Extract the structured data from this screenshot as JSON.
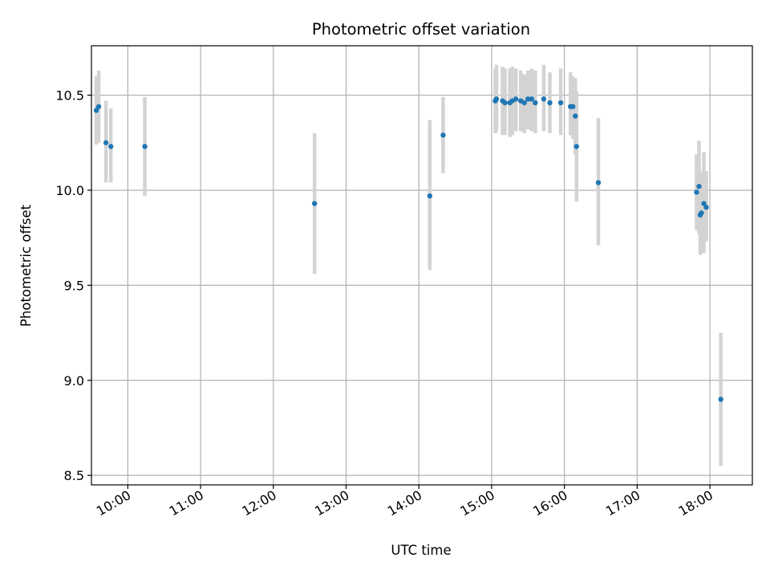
{
  "chart_data": {
    "type": "scatter",
    "title": "Photometric offset variation",
    "xlabel": "UTC time",
    "ylabel": "Photometric offset",
    "x_tick_labels": [
      "10:00",
      "11:00",
      "12:00",
      "13:00",
      "14:00",
      "15:00",
      "16:00",
      "17:00",
      "18:00"
    ],
    "y_ticks": [
      8.5,
      9.0,
      9.5,
      10.0,
      10.5
    ],
    "y_tick_labels": [
      "8.5",
      "9.0",
      "9.5",
      "10.0",
      "10.5"
    ],
    "xlim": [
      "09:30",
      "18:35"
    ],
    "ylim": [
      8.45,
      10.76
    ],
    "grid": true,
    "colors": {
      "point": "#1f77b4",
      "error_bar": "#d3d3d3",
      "grid": "#b0b0b0"
    },
    "points": [
      {
        "x": "09:34",
        "y": 10.42,
        "y_low": 10.24,
        "y_high": 10.6
      },
      {
        "x": "09:36",
        "y": 10.44,
        "y_low": 10.25,
        "y_high": 10.63
      },
      {
        "x": "09:42",
        "y": 10.25,
        "y_low": 10.04,
        "y_high": 10.47
      },
      {
        "x": "09:46",
        "y": 10.23,
        "y_low": 10.04,
        "y_high": 10.43
      },
      {
        "x": "10:14",
        "y": 10.23,
        "y_low": 9.97,
        "y_high": 10.49
      },
      {
        "x": "12:34",
        "y": 9.93,
        "y_low": 9.56,
        "y_high": 10.3
      },
      {
        "x": "14:09",
        "y": 9.97,
        "y_low": 9.58,
        "y_high": 10.37
      },
      {
        "x": "14:20",
        "y": 10.29,
        "y_low": 10.09,
        "y_high": 10.49
      },
      {
        "x": "15:03",
        "y": 10.47,
        "y_low": 10.3,
        "y_high": 10.64
      },
      {
        "x": "15:04",
        "y": 10.48,
        "y_low": 10.31,
        "y_high": 10.66
      },
      {
        "x": "15:09",
        "y": 10.47,
        "y_low": 10.29,
        "y_high": 10.65
      },
      {
        "x": "15:11",
        "y": 10.46,
        "y_low": 10.29,
        "y_high": 10.64
      },
      {
        "x": "15:15",
        "y": 10.46,
        "y_low": 10.28,
        "y_high": 10.64
      },
      {
        "x": "15:17",
        "y": 10.47,
        "y_low": 10.29,
        "y_high": 10.65
      },
      {
        "x": "15:20",
        "y": 10.48,
        "y_low": 10.31,
        "y_high": 10.64
      },
      {
        "x": "15:24",
        "y": 10.47,
        "y_low": 10.31,
        "y_high": 10.63
      },
      {
        "x": "15:27",
        "y": 10.46,
        "y_low": 10.3,
        "y_high": 10.61
      },
      {
        "x": "15:30",
        "y": 10.48,
        "y_low": 10.32,
        "y_high": 10.63
      },
      {
        "x": "15:33",
        "y": 10.48,
        "y_low": 10.31,
        "y_high": 10.64
      },
      {
        "x": "15:36",
        "y": 10.46,
        "y_low": 10.3,
        "y_high": 10.63
      },
      {
        "x": "15:43",
        "y": 10.48,
        "y_low": 10.31,
        "y_high": 10.66
      },
      {
        "x": "15:48",
        "y": 10.46,
        "y_low": 10.3,
        "y_high": 10.62
      },
      {
        "x": "15:57",
        "y": 10.46,
        "y_low": 10.29,
        "y_high": 10.64
      },
      {
        "x": "16:05",
        "y": 10.44,
        "y_low": 10.29,
        "y_high": 10.62
      },
      {
        "x": "16:07",
        "y": 10.44,
        "y_low": 10.27,
        "y_high": 10.6
      },
      {
        "x": "16:09",
        "y": 10.39,
        "y_low": 10.19,
        "y_high": 10.59
      },
      {
        "x": "16:10",
        "y": 10.23,
        "y_low": 9.94,
        "y_high": 10.52
      },
      {
        "x": "16:28",
        "y": 10.04,
        "y_low": 9.71,
        "y_high": 10.38
      },
      {
        "x": "17:49",
        "y": 9.99,
        "y_low": 9.79,
        "y_high": 10.19
      },
      {
        "x": "17:51",
        "y": 10.02,
        "y_low": 9.77,
        "y_high": 10.26
      },
      {
        "x": "17:52",
        "y": 9.87,
        "y_low": 9.66,
        "y_high": 10.09
      },
      {
        "x": "17:53",
        "y": 9.88,
        "y_low": 9.67,
        "y_high": 10.1
      },
      {
        "x": "17:55",
        "y": 9.93,
        "y_low": 9.67,
        "y_high": 10.2
      },
      {
        "x": "17:57",
        "y": 9.91,
        "y_low": 9.73,
        "y_high": 10.1
      },
      {
        "x": "18:09",
        "y": 8.9,
        "y_low": 8.55,
        "y_high": 9.25
      }
    ]
  }
}
